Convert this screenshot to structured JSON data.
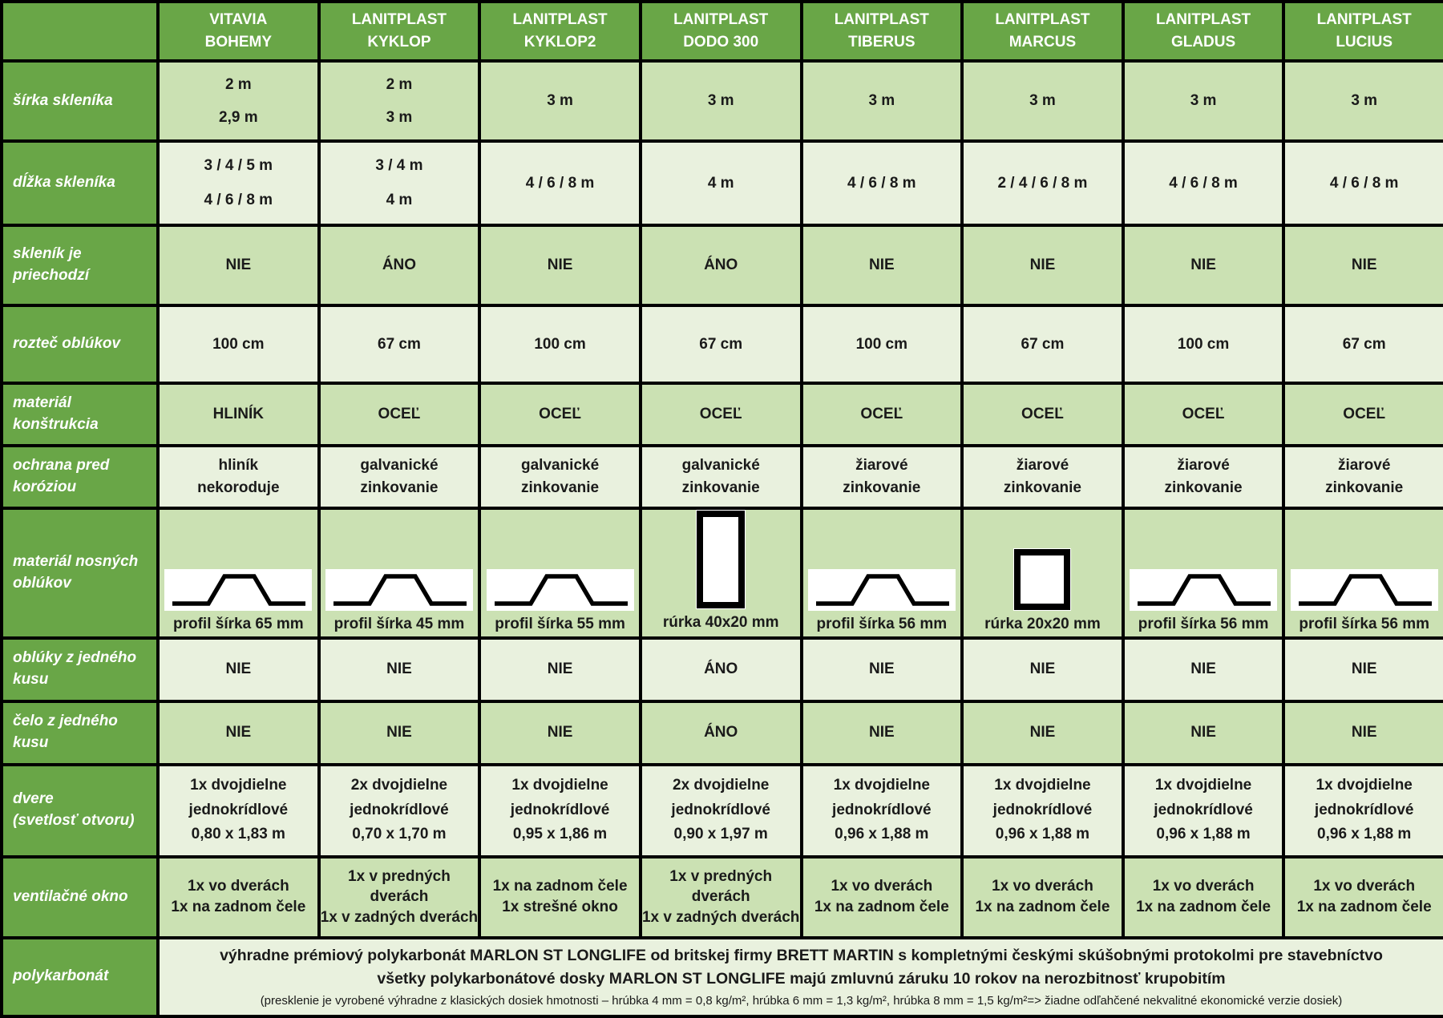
{
  "colors": {
    "header_green": "#69a647",
    "row_medium": "#cbe1b3",
    "row_light": "#e9f1de",
    "grid_black": "#000000",
    "label_text_white": "#ffffff",
    "cell_text_black": "#1a1a1a"
  },
  "columns": [
    {
      "slug": "vitavia-bohemy",
      "lines": [
        "VITAVIA",
        "BOHEMY"
      ]
    },
    {
      "slug": "lanitplast-kyklop",
      "lines": [
        "LANITPLAST",
        "KYKLOP"
      ]
    },
    {
      "slug": "lanitplast-kyklop2",
      "lines": [
        "LANITPLAST",
        "KYKLOP2"
      ]
    },
    {
      "slug": "lanitplast-dodo-300",
      "lines": [
        "LANITPLAST",
        "DODO 300"
      ]
    },
    {
      "slug": "lanitplast-tiberus",
      "lines": [
        "LANITPLAST",
        "TIBERUS"
      ]
    },
    {
      "slug": "lanitplast-marcus",
      "lines": [
        "LANITPLAST",
        "MARCUS"
      ]
    },
    {
      "slug": "lanitplast-gladus",
      "lines": [
        "LANITPLAST",
        "GLADUS"
      ]
    },
    {
      "slug": "lanitplast-lucius",
      "lines": [
        "LANITPLAST",
        "LUCIUS"
      ]
    }
  ],
  "rows": [
    {
      "id": "sirka-sklenika",
      "label_lines": [
        "šírka skleníka"
      ],
      "cells": [
        {
          "lines": [
            "2 m",
            "2,9 m"
          ]
        },
        {
          "lines": [
            "2 m",
            "3 m"
          ]
        },
        {
          "lines": [
            "3 m"
          ]
        },
        {
          "lines": [
            "3 m"
          ]
        },
        {
          "lines": [
            "3 m"
          ]
        },
        {
          "lines": [
            "3 m"
          ]
        },
        {
          "lines": [
            "3 m"
          ]
        },
        {
          "lines": [
            "3 m"
          ]
        }
      ]
    },
    {
      "id": "dlzka-sklenika",
      "label_lines": [
        "dĺžka skleníka"
      ],
      "cells": [
        {
          "lines": [
            "3 / 4 / 5 m",
            "4 / 6 / 8 m"
          ]
        },
        {
          "lines": [
            "3 / 4 m",
            "4 m"
          ]
        },
        {
          "lines": [
            "4 / 6 / 8 m"
          ]
        },
        {
          "lines": [
            "4 m"
          ]
        },
        {
          "lines": [
            "4 / 6 / 8 m"
          ]
        },
        {
          "lines": [
            "2 / 4 / 6 / 8 m"
          ]
        },
        {
          "lines": [
            "4 / 6 / 8 m"
          ]
        },
        {
          "lines": [
            "4 / 6 / 8 m"
          ]
        }
      ]
    },
    {
      "id": "sklenik-je-priechodzi",
      "label_lines": [
        "skleník je",
        "priechodzí"
      ],
      "cells": [
        {
          "lines": [
            "NIE"
          ]
        },
        {
          "lines": [
            "ÁNO"
          ]
        },
        {
          "lines": [
            "NIE"
          ]
        },
        {
          "lines": [
            "ÁNO"
          ]
        },
        {
          "lines": [
            "NIE"
          ]
        },
        {
          "lines": [
            "NIE"
          ]
        },
        {
          "lines": [
            "NIE"
          ]
        },
        {
          "lines": [
            "NIE"
          ]
        }
      ]
    },
    {
      "id": "roztec-oblukov",
      "label_lines": [
        "rozteč oblúkov"
      ],
      "cells": [
        {
          "lines": [
            "100 cm"
          ]
        },
        {
          "lines": [
            "67 cm"
          ]
        },
        {
          "lines": [
            "100 cm"
          ]
        },
        {
          "lines": [
            "67 cm"
          ]
        },
        {
          "lines": [
            "100 cm"
          ]
        },
        {
          "lines": [
            "67 cm"
          ]
        },
        {
          "lines": [
            "100 cm"
          ]
        },
        {
          "lines": [
            "67 cm"
          ]
        }
      ]
    },
    {
      "id": "material-konstrukcia",
      "label_lines": [
        "materiál",
        "konštrukcia"
      ],
      "cells": [
        {
          "lines": [
            "HLINÍK"
          ]
        },
        {
          "lines": [
            "OCEĽ"
          ]
        },
        {
          "lines": [
            "OCEĽ"
          ]
        },
        {
          "lines": [
            "OCEĽ"
          ]
        },
        {
          "lines": [
            "OCEĽ"
          ]
        },
        {
          "lines": [
            "OCEĽ"
          ]
        },
        {
          "lines": [
            "OCEĽ"
          ]
        },
        {
          "lines": [
            "OCEĽ"
          ]
        }
      ]
    },
    {
      "id": "ochrana-pred-koroziou",
      "label_lines": [
        "ochrana pred",
        "koróziou"
      ],
      "cells": [
        {
          "lines": [
            "hliník",
            "nekoroduje"
          ]
        },
        {
          "lines": [
            "galvanické",
            "zinkovanie"
          ]
        },
        {
          "lines": [
            "galvanické",
            "zinkovanie"
          ]
        },
        {
          "lines": [
            "galvanické",
            "zinkovanie"
          ]
        },
        {
          "lines": [
            "žiarové",
            "zinkovanie"
          ]
        },
        {
          "lines": [
            "žiarové",
            "zinkovanie"
          ]
        },
        {
          "lines": [
            "žiarové",
            "zinkovanie"
          ]
        },
        {
          "lines": [
            "žiarové",
            "zinkovanie"
          ]
        }
      ]
    },
    {
      "id": "material-nosnych-oblukov",
      "label_lines": [
        "materiál nosných",
        "oblúkov"
      ],
      "cells": [
        {
          "icon": "hat-profile-icon",
          "caption": "profil šírka 65 mm"
        },
        {
          "icon": "hat-profile-icon",
          "caption": "profil šírka 45 mm"
        },
        {
          "icon": "hat-profile-icon",
          "caption": "profil šírka 55 mm"
        },
        {
          "icon": "vertical-tube-icon",
          "caption": "rúrka 40x20 mm"
        },
        {
          "icon": "hat-profile-icon",
          "caption": "profil šírka 56 mm"
        },
        {
          "icon": "square-tube-icon",
          "caption": "rúrka 20x20 mm"
        },
        {
          "icon": "hat-profile-icon",
          "caption": "profil šírka 56 mm"
        },
        {
          "icon": "hat-profile-icon",
          "caption": "profil šírka 56 mm"
        }
      ]
    },
    {
      "id": "obluky-z-jedneho-kusu",
      "label_lines": [
        "oblúky z jedného",
        "kusu"
      ],
      "cells": [
        {
          "lines": [
            "NIE"
          ]
        },
        {
          "lines": [
            "NIE"
          ]
        },
        {
          "lines": [
            "NIE"
          ]
        },
        {
          "lines": [
            "ÁNO"
          ]
        },
        {
          "lines": [
            "NIE"
          ]
        },
        {
          "lines": [
            "NIE"
          ]
        },
        {
          "lines": [
            "NIE"
          ]
        },
        {
          "lines": [
            "NIE"
          ]
        }
      ]
    },
    {
      "id": "celo-z-jedneho-kusu",
      "label_lines": [
        "čelo z jedného kusu"
      ],
      "cells": [
        {
          "lines": [
            "NIE"
          ]
        },
        {
          "lines": [
            "NIE"
          ]
        },
        {
          "lines": [
            "NIE"
          ]
        },
        {
          "lines": [
            "ÁNO"
          ]
        },
        {
          "lines": [
            "NIE"
          ]
        },
        {
          "lines": [
            "NIE"
          ]
        },
        {
          "lines": [
            "NIE"
          ]
        },
        {
          "lines": [
            "NIE"
          ]
        }
      ]
    },
    {
      "id": "dvere-svetlost-otvoru",
      "label_lines": [
        "dvere",
        "(svetlosť otvoru)"
      ],
      "cells": [
        {
          "lines": [
            "1x dvojdielne",
            "jednokrídlové",
            "0,80 x 1,83 m"
          ]
        },
        {
          "lines": [
            "2x dvojdielne",
            "jednokrídlové",
            "0,70 x 1,70 m"
          ]
        },
        {
          "lines": [
            "1x dvojdielne",
            "jednokrídlové",
            "0,95 x 1,86 m"
          ]
        },
        {
          "lines": [
            "2x dvojdielne",
            "jednokrídlové",
            "0,90 x 1,97 m"
          ]
        },
        {
          "lines": [
            "1x dvojdielne",
            "jednokrídlové",
            "0,96 x 1,88 m"
          ]
        },
        {
          "lines": [
            "1x dvojdielne",
            "jednokrídlové",
            "0,96 x 1,88 m"
          ]
        },
        {
          "lines": [
            "1x dvojdielne",
            "jednokrídlové",
            "0,96 x 1,88 m"
          ]
        },
        {
          "lines": [
            "1x dvojdielne",
            "jednokrídlové",
            "0,96 x 1,88 m"
          ]
        }
      ]
    },
    {
      "id": "ventilacne-okno",
      "label_lines": [
        "ventilačné okno"
      ],
      "cells": [
        {
          "lines": [
            "1x vo dverách",
            "1x na zadnom čele"
          ]
        },
        {
          "lines": [
            "1x v predných",
            "dverách",
            "1x v zadných dverách"
          ]
        },
        {
          "lines": [
            "1x na zadnom čele",
            "1x strešné okno"
          ]
        },
        {
          "lines": [
            "1x v predných dverách",
            "1x v zadných dverách"
          ]
        },
        {
          "lines": [
            "1x vo dverách",
            "1x na zadnom čele"
          ]
        },
        {
          "lines": [
            "1x vo dverách",
            "1x na zadnom čele"
          ]
        },
        {
          "lines": [
            "1x vo dverách",
            "1x na zadnom čele"
          ]
        },
        {
          "lines": [
            "1x vo dverách",
            "1x na zadnom čele"
          ]
        }
      ]
    }
  ],
  "footer": {
    "id": "polykarbonat",
    "label_lines": [
      "polykarbonát"
    ],
    "lines_bold": [
      "výhradne prémiový polykarbonát MARLON ST LONGLIFE od britskej firmy BRETT MARTIN s kompletnými českými skúšobnými protokolmi pre stavebníctvo",
      "všetky polykarbonátové dosky MARLON ST LONGLIFE majú zmluvnú záruku 10 rokov na nerozbitnosť krupobitím"
    ],
    "line_small": "(presklenie je vyrobené výhradne z klasických dosiek hmotnosti – hrúbka 4 mm = 0,8 kg/m², hrúbka 6 mm = 1,3 kg/m², hrúbka 8 mm = 1,5 kg/m²=> žiadne odľahčené nekvalitné ekonomické verzie dosiek)"
  }
}
